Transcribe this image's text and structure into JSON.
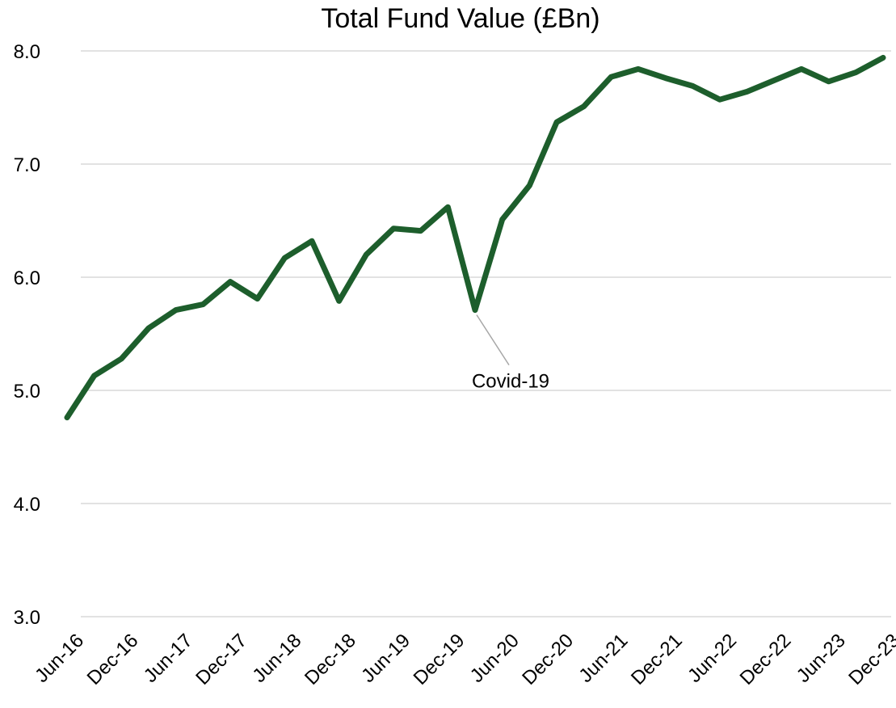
{
  "chart_data": {
    "type": "line",
    "title": "Total Fund Value (£Bn)",
    "categories": [
      "Jun-16",
      null,
      "Dec-16",
      null,
      "Jun-17",
      null,
      "Dec-17",
      null,
      "Jun-18",
      null,
      "Dec-18",
      null,
      "Jun-19",
      null,
      "Dec-19",
      null,
      "Jun-20",
      null,
      "Dec-20",
      null,
      "Jun-21",
      null,
      "Dec-21",
      null,
      "Jun-22",
      null,
      "Dec-22",
      null,
      "Jun-23",
      null,
      "Dec-23"
    ],
    "series": [
      {
        "name": "Total Fund Value",
        "color": "#1d5e2c",
        "values": [
          4.76,
          5.13,
          5.28,
          5.55,
          5.71,
          5.76,
          5.96,
          5.81,
          6.17,
          6.32,
          5.79,
          6.2,
          6.43,
          6.41,
          6.62,
          5.71,
          6.51,
          6.81,
          7.37,
          7.51,
          7.77,
          7.84,
          7.76,
          7.69,
          7.57,
          7.64,
          7.74,
          7.84,
          7.73,
          7.81,
          7.94
        ]
      }
    ],
    "ylim": [
      3,
      8
    ],
    "yticks": [
      {
        "value": 3,
        "label": "3.0"
      },
      {
        "value": 4,
        "label": "4.0"
      },
      {
        "value": 5,
        "label": "5.0"
      },
      {
        "value": 6,
        "label": "6.0"
      },
      {
        "value": 7,
        "label": "7.0"
      },
      {
        "value": 8,
        "label": "8.0"
      }
    ],
    "grid": true,
    "annotations": [
      {
        "text": "Covid-19",
        "index": 15
      }
    ]
  }
}
